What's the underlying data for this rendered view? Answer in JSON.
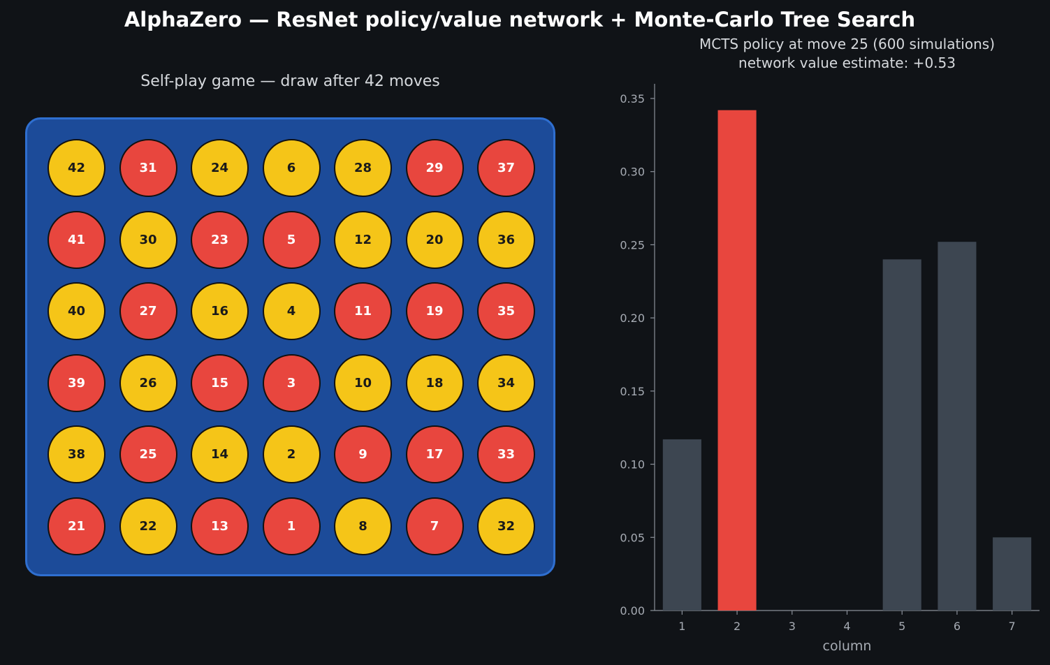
{
  "title": "AlphaZero — ResNet policy/value network + Monte-Carlo Tree Search",
  "board": {
    "title": "Self-play game — draw after 42 moves",
    "colors": {
      "board": "#1c4b99",
      "border": "#2f6fd0",
      "yellow": "#f5c518",
      "red": "#e8463e"
    },
    "rows": [
      [
        {
          "n": "42",
          "c": "yellow"
        },
        {
          "n": "31",
          "c": "red"
        },
        {
          "n": "24",
          "c": "yellow"
        },
        {
          "n": "6",
          "c": "yellow"
        },
        {
          "n": "28",
          "c": "yellow"
        },
        {
          "n": "29",
          "c": "red"
        },
        {
          "n": "37",
          "c": "red"
        }
      ],
      [
        {
          "n": "41",
          "c": "red"
        },
        {
          "n": "30",
          "c": "yellow"
        },
        {
          "n": "23",
          "c": "red"
        },
        {
          "n": "5",
          "c": "red"
        },
        {
          "n": "12",
          "c": "yellow"
        },
        {
          "n": "20",
          "c": "yellow"
        },
        {
          "n": "36",
          "c": "yellow"
        }
      ],
      [
        {
          "n": "40",
          "c": "yellow"
        },
        {
          "n": "27",
          "c": "red"
        },
        {
          "n": "16",
          "c": "yellow"
        },
        {
          "n": "4",
          "c": "yellow"
        },
        {
          "n": "11",
          "c": "red"
        },
        {
          "n": "19",
          "c": "red"
        },
        {
          "n": "35",
          "c": "red"
        }
      ],
      [
        {
          "n": "39",
          "c": "red"
        },
        {
          "n": "26",
          "c": "yellow"
        },
        {
          "n": "15",
          "c": "red"
        },
        {
          "n": "3",
          "c": "red"
        },
        {
          "n": "10",
          "c": "yellow"
        },
        {
          "n": "18",
          "c": "yellow"
        },
        {
          "n": "34",
          "c": "yellow"
        }
      ],
      [
        {
          "n": "38",
          "c": "yellow"
        },
        {
          "n": "25",
          "c": "red"
        },
        {
          "n": "14",
          "c": "yellow"
        },
        {
          "n": "2",
          "c": "yellow"
        },
        {
          "n": "9",
          "c": "red"
        },
        {
          "n": "17",
          "c": "red"
        },
        {
          "n": "33",
          "c": "red"
        }
      ],
      [
        {
          "n": "21",
          "c": "red"
        },
        {
          "n": "22",
          "c": "yellow"
        },
        {
          "n": "13",
          "c": "red"
        },
        {
          "n": "1",
          "c": "red"
        },
        {
          "n": "8",
          "c": "yellow"
        },
        {
          "n": "7",
          "c": "red"
        },
        {
          "n": "32",
          "c": "yellow"
        }
      ]
    ]
  },
  "chart_data": {
    "type": "bar",
    "title_line1": "MCTS policy at move 25  (600 simulations)",
    "title_line2": "network value estimate: +0.53",
    "xlabel": "column",
    "ylabel": "",
    "categories": [
      "1",
      "2",
      "3",
      "4",
      "5",
      "6",
      "7"
    ],
    "values": [
      0.117,
      0.342,
      0.0,
      0.0,
      0.24,
      0.252,
      0.05
    ],
    "highlight_index": 1,
    "ylim": [
      0,
      0.36
    ],
    "yticks": [
      "0.00",
      "0.05",
      "0.10",
      "0.15",
      "0.20",
      "0.25",
      "0.30",
      "0.35"
    ],
    "grid": false,
    "colors": {
      "bar": "#3d4651",
      "highlight": "#e8463e",
      "axis": "#8a9099",
      "tick_text": "#a6abb3"
    }
  }
}
